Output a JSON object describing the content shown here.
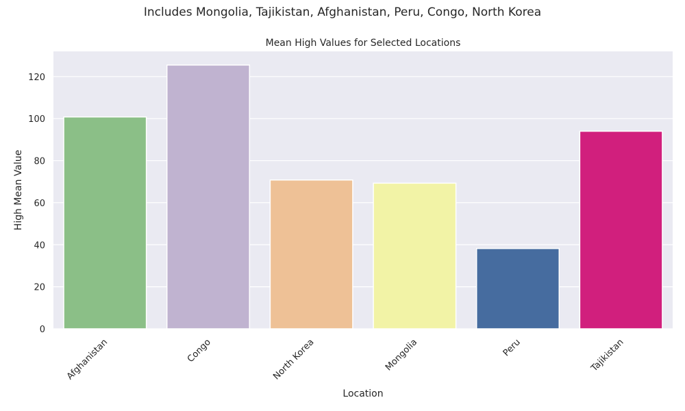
{
  "suptitle": "Includes Mongolia, Tajikistan, Afghanistan, Peru, Congo, North Korea",
  "chart_data": {
    "type": "bar",
    "title": "Mean High Values for Selected Locations",
    "xlabel": "Location",
    "ylabel": "High Mean Value",
    "categories": [
      "Afghanistan",
      "Congo",
      "North Korea",
      "Mongolia",
      "Peru",
      "Tajikistan"
    ],
    "values": [
      100.8,
      125.5,
      70.8,
      69.3,
      38.2,
      94.0
    ],
    "colors": [
      "#8bbf87",
      "#c0b3d0",
      "#eec196",
      "#f2f3a6",
      "#466c9f",
      "#d11f7d"
    ],
    "ylim": [
      0,
      132
    ],
    "yticks": [
      0,
      20,
      40,
      60,
      80,
      100,
      120
    ],
    "grid": true,
    "x_tick_rotation": 45,
    "background": "#eaeaf2"
  }
}
